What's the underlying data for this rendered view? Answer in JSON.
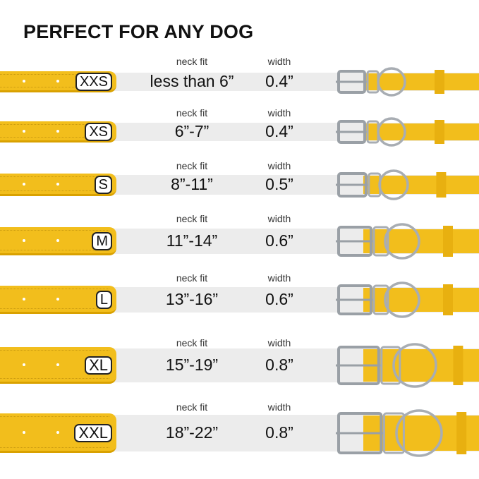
{
  "title": "PERFECT FOR ANY DOG",
  "neck_label": "neck fit",
  "width_label": "width",
  "colors": {
    "collar": "#f2be1c",
    "band": "#ececec",
    "metal": "#b8bcc2"
  },
  "rows": [
    {
      "size": "XXS",
      "neck_fit": "less than 6”",
      "width": "0.4”"
    },
    {
      "size": "XS",
      "neck_fit": "6”-7”",
      "width": "0.4”"
    },
    {
      "size": "S",
      "neck_fit": "8”-11”",
      "width": "0.5”"
    },
    {
      "size": "M",
      "neck_fit": "11”-14”",
      "width": "0.6”"
    },
    {
      "size": "L",
      "neck_fit": "13”-16”",
      "width": "0.6”"
    },
    {
      "size": "XL",
      "neck_fit": "15”-19”",
      "width": "0.8”"
    },
    {
      "size": "XXL",
      "neck_fit": "18”-22”",
      "width": "0.8”"
    }
  ]
}
